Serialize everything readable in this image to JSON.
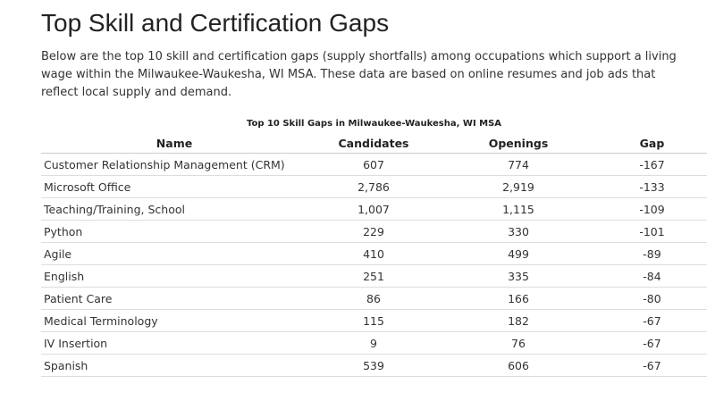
{
  "page": {
    "title": "Top Skill and Certification Gaps",
    "intro": "Below are the top 10 skill and certification gaps (supply shortfalls) among occupations which support a living wage within the Milwaukee-Waukesha, WI MSA. These data are based on online resumes and job ads that reflect local supply and demand."
  },
  "table": {
    "caption": "Top 10 Skill Gaps in Milwaukee-Waukesha, WI MSA",
    "columns": [
      "Name",
      "Candidates",
      "Openings",
      "Gap"
    ],
    "rows": [
      [
        "Customer Relationship Management (CRM)",
        "607",
        "774",
        "-167"
      ],
      [
        "Microsoft Office",
        "2,786",
        "2,919",
        "-133"
      ],
      [
        "Teaching/Training, School",
        "1,007",
        "1,115",
        "-109"
      ],
      [
        "Python",
        "229",
        "330",
        "-101"
      ],
      [
        "Agile",
        "410",
        "499",
        "-89"
      ],
      [
        "English",
        "251",
        "335",
        "-84"
      ],
      [
        "Patient Care",
        "86",
        "166",
        "-80"
      ],
      [
        "Medical Terminology",
        "115",
        "182",
        "-67"
      ],
      [
        "IV Insertion",
        "9",
        "76",
        "-67"
      ],
      [
        "Spanish",
        "539",
        "606",
        "-67"
      ]
    ]
  }
}
